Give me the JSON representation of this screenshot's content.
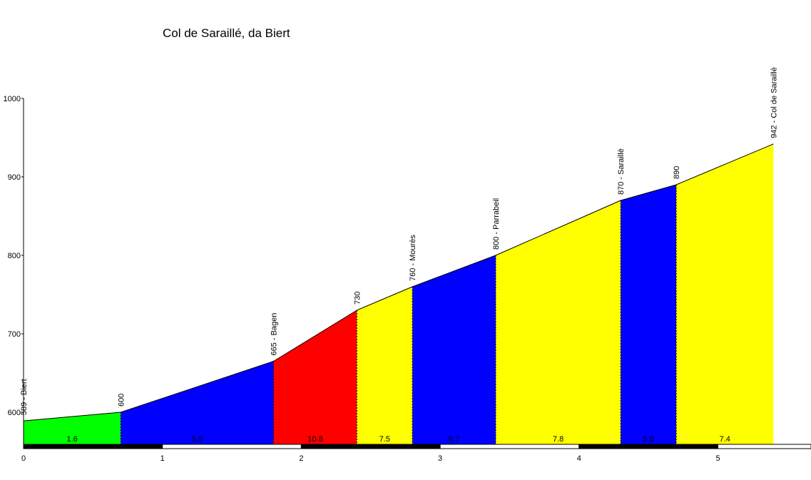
{
  "chart_data": {
    "type": "area",
    "title": "Col de Saraillé, da Biert",
    "xlabel": "",
    "ylabel": "",
    "xlim": [
      0,
      5.66
    ],
    "ylim": [
      559,
      1000
    ],
    "x_ticks": [
      "0",
      "1",
      "2",
      "3",
      "4",
      "5"
    ],
    "y_ticks": [
      "600",
      "700",
      "800",
      "900",
      "1000"
    ],
    "points": [
      {
        "x": 0.0,
        "y": 589,
        "label": "589 - Biert"
      },
      {
        "x": 0.7,
        "y": 600,
        "label": "600"
      },
      {
        "x": 1.8,
        "y": 665,
        "label": "665 - Bagen"
      },
      {
        "x": 2.4,
        "y": 730,
        "label": "730"
      },
      {
        "x": 2.8,
        "y": 760,
        "label": "760 - Mourès"
      },
      {
        "x": 3.4,
        "y": 800,
        "label": "800 - Parrabeil"
      },
      {
        "x": 4.3,
        "y": 870,
        "label": "870 - Saraillè"
      },
      {
        "x": 4.7,
        "y": 890,
        "label": "890"
      },
      {
        "x": 5.4,
        "y": 942,
        "label": "942 - Col de Saraillè"
      }
    ],
    "segments": [
      {
        "gradient": "1.6",
        "color": "#00ff00"
      },
      {
        "gradient": "5.9",
        "color": "#0000ff"
      },
      {
        "gradient": "10.8",
        "color": "#ff0000"
      },
      {
        "gradient": "7.5",
        "color": "#ffff00"
      },
      {
        "gradient": "6.7",
        "color": "#0000ff"
      },
      {
        "gradient": "7.8",
        "color": "#ffff00"
      },
      {
        "gradient": "5.0",
        "color": "#0000ff"
      },
      {
        "gradient": "7.4",
        "color": "#ffff00"
      }
    ]
  }
}
